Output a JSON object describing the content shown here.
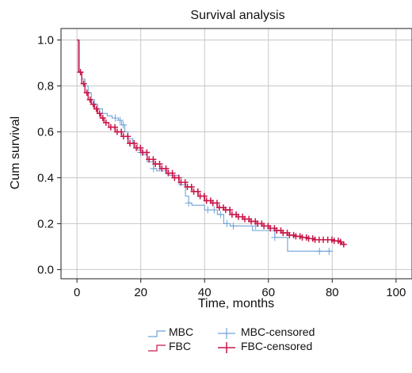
{
  "chart_data": {
    "type": "line",
    "title": "Survival analysis",
    "xlabel": "Time, months",
    "ylabel": "Cum survival",
    "xlim": [
      -5,
      105
    ],
    "ylim": [
      -0.04,
      1.05
    ],
    "xticks": [
      "0",
      "20",
      "40",
      "60",
      "80",
      "100"
    ],
    "yticks": [
      "0.0",
      "0.2",
      "0.4",
      "0.6",
      "0.8",
      "1.0"
    ],
    "grid": true,
    "legend_position": "bottom",
    "legend": {
      "mbc": "MBC",
      "fbc": "FBC",
      "mbc_censored": "MBC-censored",
      "fbc_censored": "FBC-censored"
    },
    "colors": {
      "mbc": "#6ea3d8",
      "fbc": "#c8174a",
      "grid": "#c8c8c8"
    },
    "series": [
      {
        "name": "MBC",
        "steps": [
          [
            0,
            1.0
          ],
          [
            0.8,
            0.86
          ],
          [
            1.5,
            0.83
          ],
          [
            2.5,
            0.8
          ],
          [
            3.5,
            0.77
          ],
          [
            4.5,
            0.74
          ],
          [
            5.5,
            0.72
          ],
          [
            6.5,
            0.7
          ],
          [
            8,
            0.68
          ],
          [
            9.5,
            0.67
          ],
          [
            11,
            0.66
          ],
          [
            13,
            0.65
          ],
          [
            14,
            0.63
          ],
          [
            15,
            0.6
          ],
          [
            16,
            0.57
          ],
          [
            17.5,
            0.55
          ],
          [
            19,
            0.52
          ],
          [
            20.5,
            0.5
          ],
          [
            22,
            0.47
          ],
          [
            24,
            0.44
          ],
          [
            25,
            0.43
          ],
          [
            26,
            0.44
          ],
          [
            28,
            0.42
          ],
          [
            29,
            0.41
          ],
          [
            32,
            0.37
          ],
          [
            34,
            0.32
          ],
          [
            35,
            0.29
          ],
          [
            36,
            0.28
          ],
          [
            40,
            0.26
          ],
          [
            44,
            0.24
          ],
          [
            46,
            0.2
          ],
          [
            48,
            0.19
          ],
          [
            54,
            0.19
          ],
          [
            55,
            0.17
          ],
          [
            62,
            0.14
          ],
          [
            66,
            0.08
          ],
          [
            80,
            0.08
          ]
        ],
        "censored": [
          [
            12,
            0.66
          ],
          [
            13.5,
            0.65
          ],
          [
            14.5,
            0.63
          ],
          [
            20,
            0.51
          ],
          [
            24,
            0.44
          ],
          [
            28,
            0.43
          ],
          [
            35,
            0.29
          ],
          [
            41,
            0.26
          ],
          [
            43,
            0.26
          ],
          [
            45,
            0.24
          ],
          [
            47,
            0.2
          ],
          [
            49,
            0.19
          ],
          [
            56,
            0.19
          ],
          [
            62,
            0.14
          ],
          [
            76,
            0.08
          ],
          [
            79,
            0.08
          ]
        ]
      },
      {
        "name": "FBC",
        "steps": [
          [
            0,
            1.0
          ],
          [
            0.5,
            0.86
          ],
          [
            1.5,
            0.81
          ],
          [
            2.5,
            0.77
          ],
          [
            3.5,
            0.74
          ],
          [
            4.5,
            0.72
          ],
          [
            5.5,
            0.7
          ],
          [
            6.5,
            0.68
          ],
          [
            7.5,
            0.66
          ],
          [
            8.5,
            0.64
          ],
          [
            10,
            0.62
          ],
          [
            12,
            0.6
          ],
          [
            14,
            0.58
          ],
          [
            16,
            0.55
          ],
          [
            18,
            0.53
          ],
          [
            20,
            0.51
          ],
          [
            22,
            0.48
          ],
          [
            24,
            0.46
          ],
          [
            26,
            0.44
          ],
          [
            28,
            0.42
          ],
          [
            30,
            0.4
          ],
          [
            32,
            0.38
          ],
          [
            34,
            0.36
          ],
          [
            36,
            0.34
          ],
          [
            38,
            0.32
          ],
          [
            40,
            0.3
          ],
          [
            42,
            0.29
          ],
          [
            44,
            0.27
          ],
          [
            46,
            0.26
          ],
          [
            48,
            0.24
          ],
          [
            50,
            0.23
          ],
          [
            52,
            0.22
          ],
          [
            54,
            0.21
          ],
          [
            56,
            0.2
          ],
          [
            58,
            0.19
          ],
          [
            60,
            0.18
          ],
          [
            62,
            0.17
          ],
          [
            64,
            0.16
          ],
          [
            66,
            0.15
          ],
          [
            68,
            0.145
          ],
          [
            70,
            0.14
          ],
          [
            72,
            0.135
          ],
          [
            74,
            0.13
          ],
          [
            78,
            0.13
          ],
          [
            80,
            0.125
          ],
          [
            82,
            0.12
          ],
          [
            83,
            0.11
          ],
          [
            84,
            0.11
          ]
        ]
      }
    ]
  }
}
